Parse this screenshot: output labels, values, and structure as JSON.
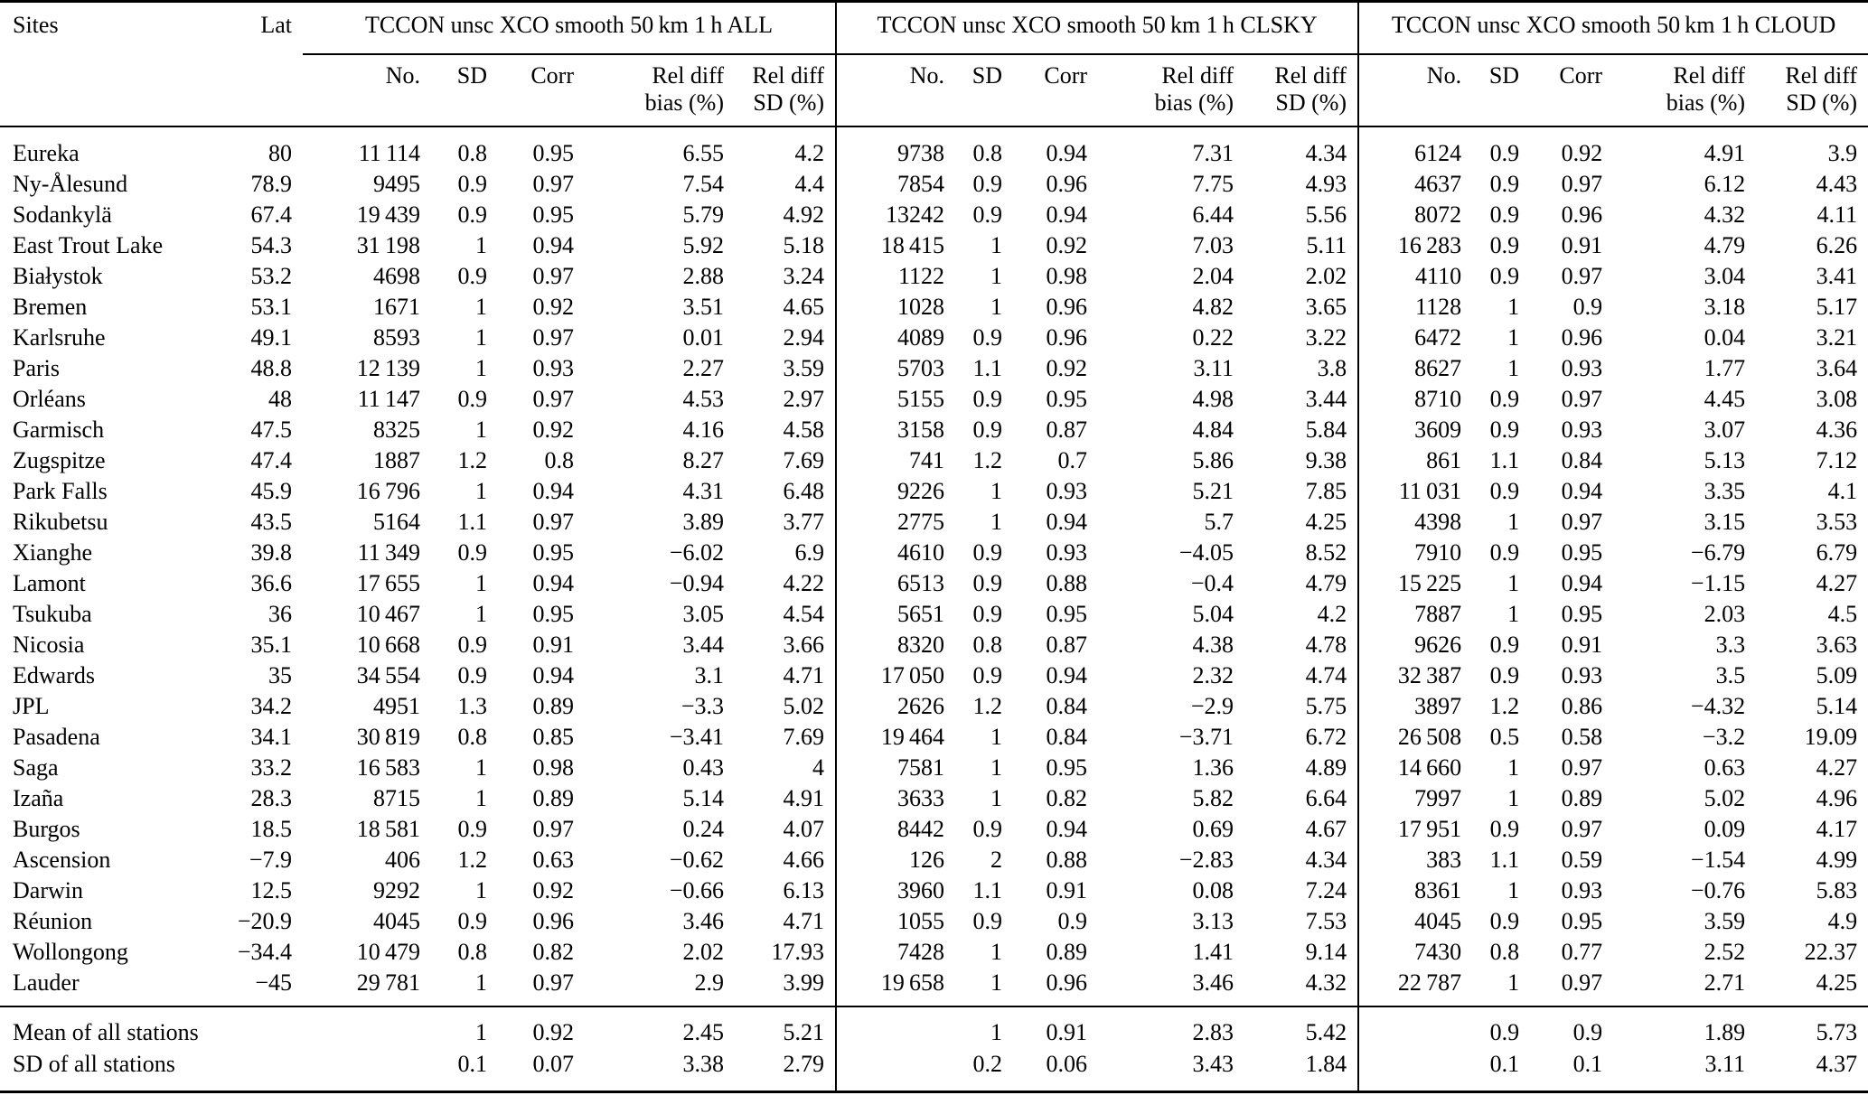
{
  "table": {
    "col_headers": {
      "sites": "Sites",
      "lat": "Lat",
      "groups": [
        {
          "title": "TCCON unsc XCO smooth 50 km 1 h ALL"
        },
        {
          "title": "TCCON unsc XCO smooth 50 km 1 h CLSKY"
        },
        {
          "title": "TCCON unsc XCO smooth 50 km 1 h CLOUD"
        }
      ],
      "subcols": [
        {
          "l1": "No.",
          "l2": ""
        },
        {
          "l1": "SD",
          "l2": ""
        },
        {
          "l1": "Corr",
          "l2": ""
        },
        {
          "l1": "Rel diff",
          "l2": "bias (%)"
        },
        {
          "l1": "Rel diff",
          "l2": "SD (%)"
        }
      ]
    },
    "rows": [
      {
        "site": "Eureka",
        "lat": "80",
        "all": [
          "11 114",
          "0.8",
          "0.95",
          "6.55",
          "4.2"
        ],
        "clsky": [
          "9738",
          "0.8",
          "0.94",
          "7.31",
          "4.34"
        ],
        "cloud": [
          "6124",
          "0.9",
          "0.92",
          "4.91",
          "3.9"
        ]
      },
      {
        "site": "Ny-Ålesund",
        "lat": "78.9",
        "all": [
          "9495",
          "0.9",
          "0.97",
          "7.54",
          "4.4"
        ],
        "clsky": [
          "7854",
          "0.9",
          "0.96",
          "7.75",
          "4.93"
        ],
        "cloud": [
          "4637",
          "0.9",
          "0.97",
          "6.12",
          "4.43"
        ]
      },
      {
        "site": "Sodankylä",
        "lat": "67.4",
        "all": [
          "19 439",
          "0.9",
          "0.95",
          "5.79",
          "4.92"
        ],
        "clsky": [
          "13242",
          "0.9",
          "0.94",
          "6.44",
          "5.56"
        ],
        "cloud": [
          "8072",
          "0.9",
          "0.96",
          "4.32",
          "4.11"
        ]
      },
      {
        "site": "East Trout Lake",
        "lat": "54.3",
        "all": [
          "31 198",
          "1",
          "0.94",
          "5.92",
          "5.18"
        ],
        "clsky": [
          "18 415",
          "1",
          "0.92",
          "7.03",
          "5.11"
        ],
        "cloud": [
          "16 283",
          "0.9",
          "0.91",
          "4.79",
          "6.26"
        ]
      },
      {
        "site": "Białystok",
        "lat": "53.2",
        "all": [
          "4698",
          "0.9",
          "0.97",
          "2.88",
          "3.24"
        ],
        "clsky": [
          "1122",
          "1",
          "0.98",
          "2.04",
          "2.02"
        ],
        "cloud": [
          "4110",
          "0.9",
          "0.97",
          "3.04",
          "3.41"
        ]
      },
      {
        "site": "Bremen",
        "lat": "53.1",
        "all": [
          "1671",
          "1",
          "0.92",
          "3.51",
          "4.65"
        ],
        "clsky": [
          "1028",
          "1",
          "0.96",
          "4.82",
          "3.65"
        ],
        "cloud": [
          "1128",
          "1",
          "0.9",
          "3.18",
          "5.17"
        ]
      },
      {
        "site": "Karlsruhe",
        "lat": "49.1",
        "all": [
          "8593",
          "1",
          "0.97",
          "0.01",
          "2.94"
        ],
        "clsky": [
          "4089",
          "0.9",
          "0.96",
          "0.22",
          "3.22"
        ],
        "cloud": [
          "6472",
          "1",
          "0.96",
          "0.04",
          "3.21"
        ]
      },
      {
        "site": "Paris",
        "lat": "48.8",
        "all": [
          "12 139",
          "1",
          "0.93",
          "2.27",
          "3.59"
        ],
        "clsky": [
          "5703",
          "1.1",
          "0.92",
          "3.11",
          "3.8"
        ],
        "cloud": [
          "8627",
          "1",
          "0.93",
          "1.77",
          "3.64"
        ]
      },
      {
        "site": "Orléans",
        "lat": "48",
        "all": [
          "11 147",
          "0.9",
          "0.97",
          "4.53",
          "2.97"
        ],
        "clsky": [
          "5155",
          "0.9",
          "0.95",
          "4.98",
          "3.44"
        ],
        "cloud": [
          "8710",
          "0.9",
          "0.97",
          "4.45",
          "3.08"
        ]
      },
      {
        "site": "Garmisch",
        "lat": "47.5",
        "all": [
          "8325",
          "1",
          "0.92",
          "4.16",
          "4.58"
        ],
        "clsky": [
          "3158",
          "0.9",
          "0.87",
          "4.84",
          "5.84"
        ],
        "cloud": [
          "3609",
          "0.9",
          "0.93",
          "3.07",
          "4.36"
        ]
      },
      {
        "site": "Zugspitze",
        "lat": "47.4",
        "all": [
          "1887",
          "1.2",
          "0.8",
          "8.27",
          "7.69"
        ],
        "clsky": [
          "741",
          "1.2",
          "0.7",
          "5.86",
          "9.38"
        ],
        "cloud": [
          "861",
          "1.1",
          "0.84",
          "5.13",
          "7.12"
        ]
      },
      {
        "site": "Park Falls",
        "lat": "45.9",
        "all": [
          "16 796",
          "1",
          "0.94",
          "4.31",
          "6.48"
        ],
        "clsky": [
          "9226",
          "1",
          "0.93",
          "5.21",
          "7.85"
        ],
        "cloud": [
          "11 031",
          "0.9",
          "0.94",
          "3.35",
          "4.1"
        ]
      },
      {
        "site": "Rikubetsu",
        "lat": "43.5",
        "all": [
          "5164",
          "1.1",
          "0.97",
          "3.89",
          "3.77"
        ],
        "clsky": [
          "2775",
          "1",
          "0.94",
          "5.7",
          "4.25"
        ],
        "cloud": [
          "4398",
          "1",
          "0.97",
          "3.15",
          "3.53"
        ]
      },
      {
        "site": "Xianghe",
        "lat": "39.8",
        "all": [
          "11 349",
          "0.9",
          "0.95",
          "−6.02",
          "6.9"
        ],
        "clsky": [
          "4610",
          "0.9",
          "0.93",
          "−4.05",
          "8.52"
        ],
        "cloud": [
          "7910",
          "0.9",
          "0.95",
          "−6.79",
          "6.79"
        ]
      },
      {
        "site": "Lamont",
        "lat": "36.6",
        "all": [
          "17 655",
          "1",
          "0.94",
          "−0.94",
          "4.22"
        ],
        "clsky": [
          "6513",
          "0.9",
          "0.88",
          "−0.4",
          "4.79"
        ],
        "cloud": [
          "15 225",
          "1",
          "0.94",
          "−1.15",
          "4.27"
        ]
      },
      {
        "site": "Tsukuba",
        "lat": "36",
        "all": [
          "10 467",
          "1",
          "0.95",
          "3.05",
          "4.54"
        ],
        "clsky": [
          "5651",
          "0.9",
          "0.95",
          "5.04",
          "4.2"
        ],
        "cloud": [
          "7887",
          "1",
          "0.95",
          "2.03",
          "4.5"
        ]
      },
      {
        "site": "Nicosia",
        "lat": "35.1",
        "all": [
          "10 668",
          "0.9",
          "0.91",
          "3.44",
          "3.66"
        ],
        "clsky": [
          "8320",
          "0.8",
          "0.87",
          "4.38",
          "4.78"
        ],
        "cloud": [
          "9626",
          "0.9",
          "0.91",
          "3.3",
          "3.63"
        ]
      },
      {
        "site": "Edwards",
        "lat": "35",
        "all": [
          "34 554",
          "0.9",
          "0.94",
          "3.1",
          "4.71"
        ],
        "clsky": [
          "17 050",
          "0.9",
          "0.94",
          "2.32",
          "4.74"
        ],
        "cloud": [
          "32 387",
          "0.9",
          "0.93",
          "3.5",
          "5.09"
        ]
      },
      {
        "site": "JPL",
        "lat": "34.2",
        "all": [
          "4951",
          "1.3",
          "0.89",
          "−3.3",
          "5.02"
        ],
        "clsky": [
          "2626",
          "1.2",
          "0.84",
          "−2.9",
          "5.75"
        ],
        "cloud": [
          "3897",
          "1.2",
          "0.86",
          "−4.32",
          "5.14"
        ]
      },
      {
        "site": "Pasadena",
        "lat": "34.1",
        "all": [
          "30 819",
          "0.8",
          "0.85",
          "−3.41",
          "7.69"
        ],
        "clsky": [
          "19 464",
          "1",
          "0.84",
          "−3.71",
          "6.72"
        ],
        "cloud": [
          "26 508",
          "0.5",
          "0.58",
          "−3.2",
          "19.09"
        ]
      },
      {
        "site": "Saga",
        "lat": "33.2",
        "all": [
          "16 583",
          "1",
          "0.98",
          "0.43",
          "4"
        ],
        "clsky": [
          "7581",
          "1",
          "0.95",
          "1.36",
          "4.89"
        ],
        "cloud": [
          "14 660",
          "1",
          "0.97",
          "0.63",
          "4.27"
        ]
      },
      {
        "site": "Izaña",
        "lat": "28.3",
        "all": [
          "8715",
          "1",
          "0.89",
          "5.14",
          "4.91"
        ],
        "clsky": [
          "3633",
          "1",
          "0.82",
          "5.82",
          "6.64"
        ],
        "cloud": [
          "7997",
          "1",
          "0.89",
          "5.02",
          "4.96"
        ]
      },
      {
        "site": "Burgos",
        "lat": "18.5",
        "all": [
          "18 581",
          "0.9",
          "0.97",
          "0.24",
          "4.07"
        ],
        "clsky": [
          "8442",
          "0.9",
          "0.94",
          "0.69",
          "4.67"
        ],
        "cloud": [
          "17 951",
          "0.9",
          "0.97",
          "0.09",
          "4.17"
        ]
      },
      {
        "site": "Ascension",
        "lat": "−7.9",
        "all": [
          "406",
          "1.2",
          "0.63",
          "−0.62",
          "4.66"
        ],
        "clsky": [
          "126",
          "2",
          "0.88",
          "−2.83",
          "4.34"
        ],
        "cloud": [
          "383",
          "1.1",
          "0.59",
          "−1.54",
          "4.99"
        ]
      },
      {
        "site": "Darwin",
        "lat": "12.5",
        "all": [
          "9292",
          "1",
          "0.92",
          "−0.66",
          "6.13"
        ],
        "clsky": [
          "3960",
          "1.1",
          "0.91",
          "0.08",
          "7.24"
        ],
        "cloud": [
          "8361",
          "1",
          "0.93",
          "−0.76",
          "5.83"
        ]
      },
      {
        "site": "Réunion",
        "lat": "−20.9",
        "all": [
          "4045",
          "0.9",
          "0.96",
          "3.46",
          "4.71"
        ],
        "clsky": [
          "1055",
          "0.9",
          "0.9",
          "3.13",
          "7.53"
        ],
        "cloud": [
          "4045",
          "0.9",
          "0.95",
          "3.59",
          "4.9"
        ]
      },
      {
        "site": "Wollongong",
        "lat": "−34.4",
        "all": [
          "10 479",
          "0.8",
          "0.82",
          "2.02",
          "17.93"
        ],
        "clsky": [
          "7428",
          "1",
          "0.89",
          "1.41",
          "9.14"
        ],
        "cloud": [
          "7430",
          "0.8",
          "0.77",
          "2.52",
          "22.37"
        ]
      },
      {
        "site": "Lauder",
        "lat": "−45",
        "all": [
          "29 781",
          "1",
          "0.97",
          "2.9",
          "3.99"
        ],
        "clsky": [
          "19 658",
          "1",
          "0.96",
          "3.46",
          "4.32"
        ],
        "cloud": [
          "22 787",
          "1",
          "0.97",
          "2.71",
          "4.25"
        ]
      }
    ],
    "footer_rows": [
      {
        "site": "Mean of all stations",
        "all": [
          "",
          "1",
          "0.92",
          "2.45",
          "5.21"
        ],
        "clsky": [
          "",
          "1",
          "0.91",
          "2.83",
          "5.42"
        ],
        "cloud": [
          "",
          "0.9",
          "0.9",
          "1.89",
          "5.73"
        ]
      },
      {
        "site": "SD of all stations",
        "all": [
          "",
          "0.1",
          "0.07",
          "3.38",
          "2.79"
        ],
        "clsky": [
          "",
          "0.2",
          "0.06",
          "3.43",
          "1.84"
        ],
        "cloud": [
          "",
          "0.1",
          "0.1",
          "3.11",
          "4.37"
        ]
      }
    ]
  }
}
